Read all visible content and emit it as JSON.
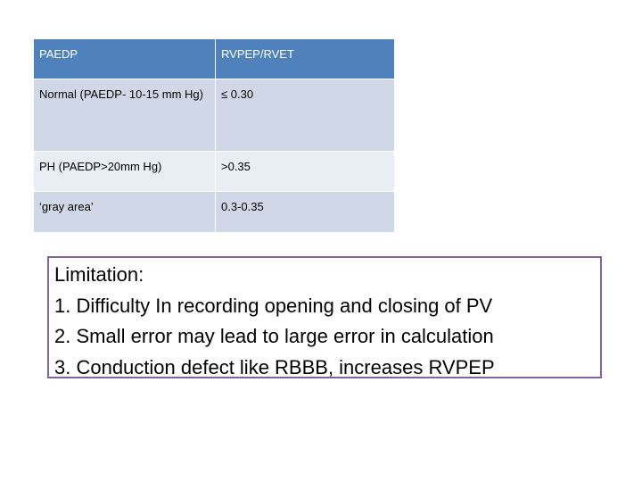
{
  "table": {
    "header": [
      "PAEDP",
      "RVPEP/RVET"
    ],
    "rows": [
      [
        "Normal (PAEDP- 10-15 mm Hg)",
        "≤ 0.30"
      ],
      [
        "PH (PAEDP>20mm Hg)",
        ">0.35"
      ],
      [
        "‘gray area’",
        "0.3-0.35"
      ]
    ]
  },
  "note": {
    "title": "Limitation:",
    "items": [
      "1. Difficulty In recording opening and closing of PV",
      "2. Small error may lead to large error in calculation",
      "3. Conduction defect like RBBB, increases RVPEP"
    ]
  }
}
